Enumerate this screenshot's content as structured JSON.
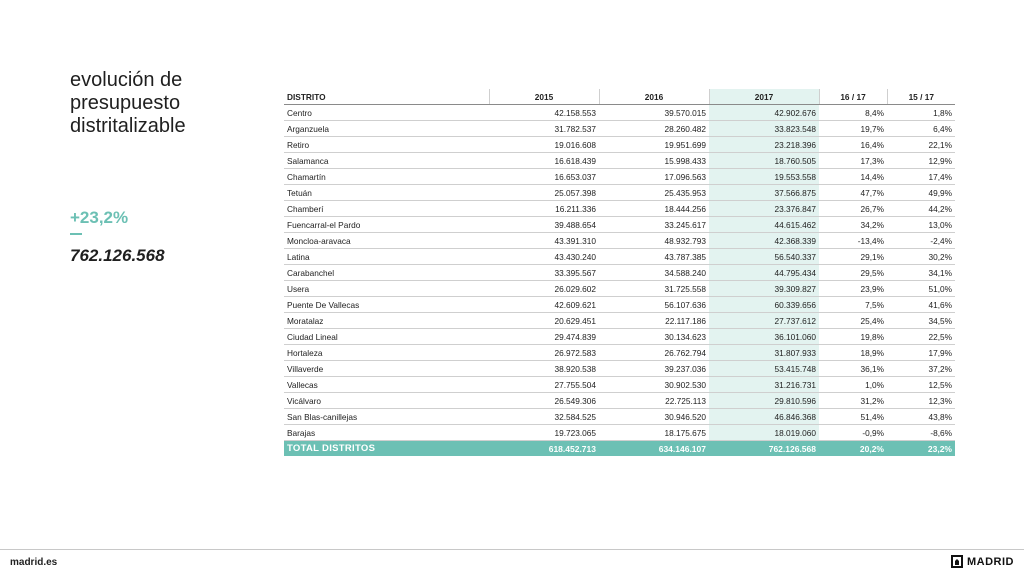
{
  "title": "evolución de\npresupuesto\ndistritalizable",
  "kpi": {
    "change": "+23,2%",
    "total": "762.126.568"
  },
  "table": {
    "headers": [
      "DISTRITO",
      "2015",
      "2016",
      "2017",
      "16 / 17",
      "15 / 17"
    ],
    "rows": [
      [
        "Centro",
        "42.158.553",
        "39.570.015",
        "42.902.676",
        "8,4%",
        "1,8%"
      ],
      [
        "Arganzuela",
        "31.782.537",
        "28.260.482",
        "33.823.548",
        "19,7%",
        "6,4%"
      ],
      [
        "Retiro",
        "19.016.608",
        "19.951.699",
        "23.218.396",
        "16,4%",
        "22,1%"
      ],
      [
        "Salamanca",
        "16.618.439",
        "15.998.433",
        "18.760.505",
        "17,3%",
        "12,9%"
      ],
      [
        "Chamartín",
        "16.653.037",
        "17.096.563",
        "19.553.558",
        "14,4%",
        "17,4%"
      ],
      [
        "Tetuán",
        "25.057.398",
        "25.435.953",
        "37.566.875",
        "47,7%",
        "49,9%"
      ],
      [
        "Chamberí",
        "16.211.336",
        "18.444.256",
        "23.376.847",
        "26,7%",
        "44,2%"
      ],
      [
        "Fuencarral-el Pardo",
        "39.488.654",
        "33.245.617",
        "44.615.462",
        "34,2%",
        "13,0%"
      ],
      [
        "Moncloa-aravaca",
        "43.391.310",
        "48.932.793",
        "42.368.339",
        "-13,4%",
        "-2,4%"
      ],
      [
        "Latina",
        "43.430.240",
        "43.787.385",
        "56.540.337",
        "29,1%",
        "30,2%"
      ],
      [
        "Carabanchel",
        "33.395.567",
        "34.588.240",
        "44.795.434",
        "29,5%",
        "34,1%"
      ],
      [
        "Usera",
        "26.029.602",
        "31.725.558",
        "39.309.827",
        "23,9%",
        "51,0%"
      ],
      [
        "Puente De Vallecas",
        "42.609.621",
        "56.107.636",
        "60.339.656",
        "7,5%",
        "41,6%"
      ],
      [
        "Moratalaz",
        "20.629.451",
        "22.117.186",
        "27.737.612",
        "25,4%",
        "34,5%"
      ],
      [
        "Ciudad Lineal",
        "29.474.839",
        "30.134.623",
        "36.101.060",
        "19,8%",
        "22,5%"
      ],
      [
        "Hortaleza",
        "26.972.583",
        "26.762.794",
        "31.807.933",
        "18,9%",
        "17,9%"
      ],
      [
        "Villaverde",
        "38.920.538",
        "39.237.036",
        "53.415.748",
        "36,1%",
        "37,2%"
      ],
      [
        "Vallecas",
        "27.755.504",
        "30.902.530",
        "31.216.731",
        "1,0%",
        "12,5%"
      ],
      [
        "Vicálvaro",
        "26.549.306",
        "22.725.113",
        "29.810.596",
        "31,2%",
        "12,3%"
      ],
      [
        "San Blas-canillejas",
        "32.584.525",
        "30.946.520",
        "46.846.368",
        "51,4%",
        "43,8%"
      ],
      [
        "Barajas",
        "19.723.065",
        "18.175.675",
        "18.019.060",
        "-0,9%",
        "-8,6%"
      ]
    ],
    "total": [
      "TOTAL DISTRITOS",
      "618.452.713",
      "634.146.107",
      "762.126.568",
      "20,2%",
      "23,2%"
    ]
  },
  "footer": {
    "site": "madrid.es",
    "brand": "MADRID"
  },
  "colors": {
    "accent": "#6cc0b4",
    "highlight_column": "#e3f3f0"
  }
}
